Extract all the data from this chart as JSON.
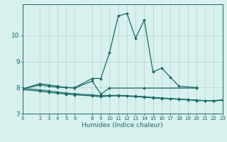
{
  "title": "",
  "xlabel": "Humidex (Indice chaleur)",
  "xlim": [
    0,
    23
  ],
  "ylim": [
    7,
    11.2
  ],
  "yticks": [
    7,
    8,
    9,
    10
  ],
  "xticks": [
    0,
    2,
    3,
    4,
    5,
    6,
    8,
    9,
    10,
    11,
    12,
    13,
    14,
    15,
    16,
    17,
    18,
    19,
    20,
    21,
    22,
    23
  ],
  "bg_color": "#d8f0ee",
  "grid_color": "#b8d8d4",
  "line_color": "#1a6b65",
  "line_width": 0.9,
  "markersize": 2.0,
  "series": [
    {
      "x": [
        0,
        2,
        3,
        4,
        5,
        6,
        8,
        9,
        10,
        11,
        12,
        13,
        14,
        15,
        16,
        17,
        18,
        20
      ],
      "y": [
        7.95,
        8.15,
        8.1,
        8.05,
        8.0,
        8.0,
        8.35,
        8.35,
        9.35,
        10.75,
        10.85,
        9.9,
        10.6,
        8.6,
        8.75,
        8.4,
        8.05,
        8.0
      ]
    },
    {
      "x": [
        0,
        2,
        3,
        4,
        5,
        6,
        8,
        9,
        10,
        14,
        20
      ],
      "y": [
        7.95,
        8.1,
        8.05,
        8.02,
        8.0,
        7.98,
        8.25,
        7.75,
        7.98,
        7.98,
        7.98
      ]
    },
    {
      "x": [
        0,
        2,
        3,
        4,
        5,
        6,
        8,
        9,
        10,
        11,
        12,
        13,
        14,
        15,
        16,
        17,
        18,
        19,
        20,
        21,
        22,
        23
      ],
      "y": [
        7.92,
        7.86,
        7.82,
        7.78,
        7.75,
        7.72,
        7.68,
        7.65,
        7.68,
        7.68,
        7.67,
        7.65,
        7.63,
        7.6,
        7.58,
        7.57,
        7.55,
        7.53,
        7.5,
        7.5,
        7.48,
        7.52
      ]
    },
    {
      "x": [
        0,
        2,
        3,
        4,
        5,
        6,
        8,
        9,
        10,
        11,
        12,
        13,
        14,
        15,
        16,
        17,
        18,
        19,
        20,
        21,
        22,
        23
      ],
      "y": [
        7.97,
        7.91,
        7.87,
        7.83,
        7.79,
        7.76,
        7.72,
        7.68,
        7.7,
        7.7,
        7.69,
        7.67,
        7.65,
        7.62,
        7.6,
        7.58,
        7.56,
        7.54,
        7.52,
        7.5,
        7.5,
        7.53
      ]
    }
  ]
}
